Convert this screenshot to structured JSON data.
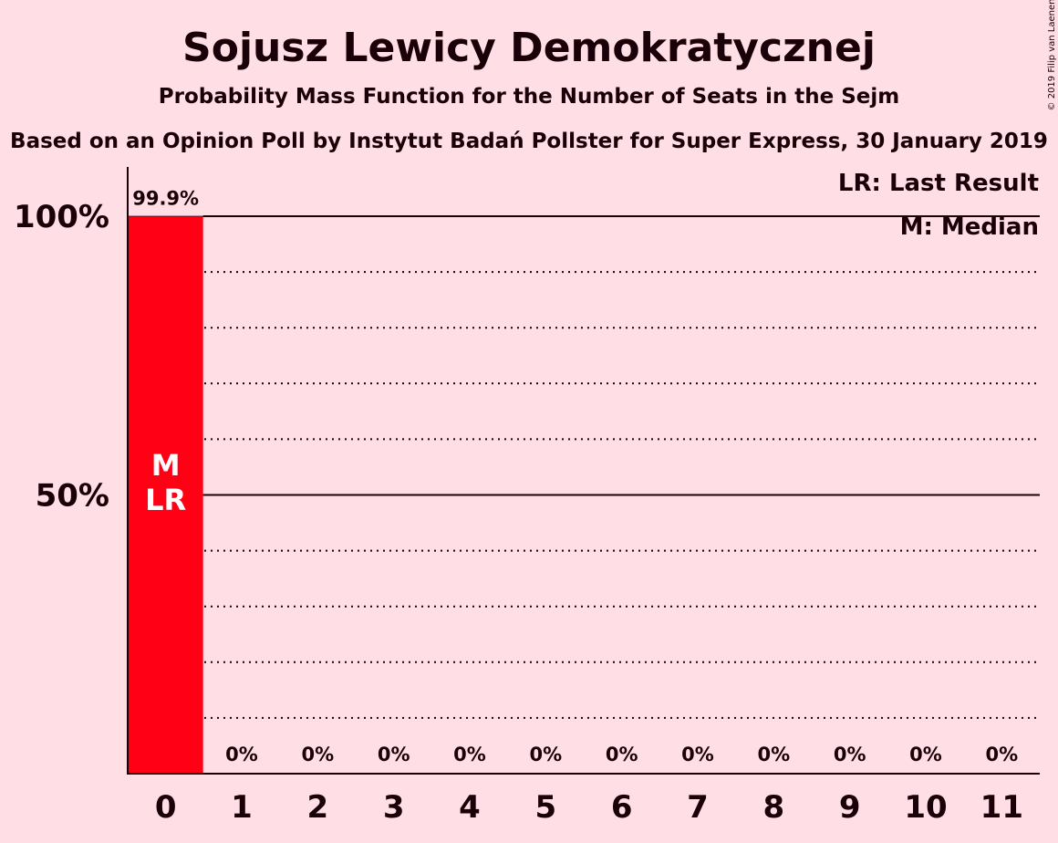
{
  "copyright": "© 2019 Filip van Laenen",
  "chart_data": {
    "type": "bar",
    "title": "Sojusz Lewicy Demokratycznej",
    "subtitle": "Probability Mass Function for the Number of Seats in the Sejm",
    "subtitle2": "Based on an Opinion Poll by Instytut Badań Pollster for Super Express, 30 January 2019",
    "categories": [
      "0",
      "1",
      "2",
      "3",
      "4",
      "5",
      "6",
      "7",
      "8",
      "9",
      "10",
      "11"
    ],
    "values": [
      99.9,
      0,
      0,
      0,
      0,
      0,
      0,
      0,
      0,
      0,
      0,
      0
    ],
    "value_labels": [
      "99.9%",
      "0%",
      "0%",
      "0%",
      "0%",
      "0%",
      "0%",
      "0%",
      "0%",
      "0%",
      "0%",
      "0%"
    ],
    "bar_color": "#ff0014",
    "ylim": [
      0,
      100
    ],
    "yticks": [
      {
        "value": 50,
        "label": "50%"
      },
      {
        "value": 100,
        "label": "100%"
      }
    ],
    "minor_gridlines": [
      10,
      20,
      30,
      40,
      60,
      70,
      80,
      90
    ],
    "median_index": 0,
    "last_result_index": 0,
    "median_mark": "M",
    "last_result_mark": "LR",
    "legend": [
      "LR: Last Result",
      "M: Median"
    ],
    "legend_position": "top-right"
  }
}
